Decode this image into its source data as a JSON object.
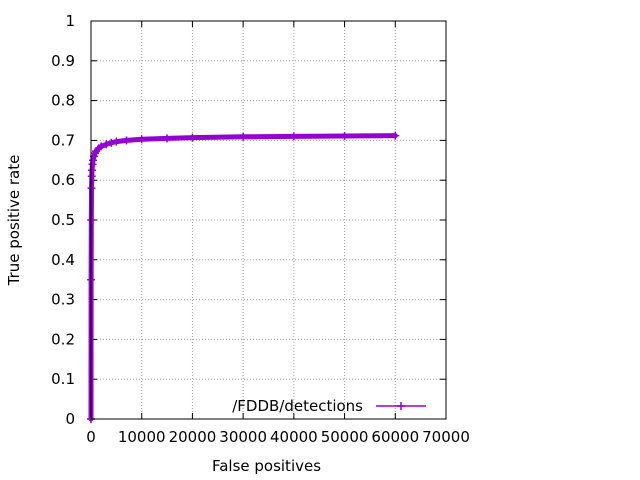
{
  "chart_data": {
    "type": "line",
    "xlabel": "False positives",
    "ylabel": "True positive rate",
    "xlim": [
      0,
      70000
    ],
    "ylim": [
      0,
      1
    ],
    "x_ticks": [
      0,
      10000,
      20000,
      30000,
      40000,
      50000,
      60000,
      70000
    ],
    "x_tick_labels": [
      "0",
      "10000",
      "20000",
      "30000",
      "40000",
      "50000",
      "60000",
      "70000"
    ],
    "y_ticks": [
      0,
      0.1,
      0.2,
      0.3,
      0.4,
      0.5,
      0.6,
      0.7,
      0.8,
      0.9,
      1
    ],
    "y_tick_labels": [
      "0",
      "0.1",
      "0.2",
      "0.3",
      "0.4",
      "0.5",
      "0.6",
      "0.7",
      "0.8",
      "0.9",
      "1"
    ],
    "grid": true,
    "legend_position": "bottom-right",
    "series": [
      {
        "name": "/FDDB/detections",
        "color": "#9400d3",
        "marker": "plus",
        "x": [
          0,
          20,
          50,
          100,
          150,
          200,
          300,
          400,
          600,
          800,
          1000,
          1500,
          2000,
          3000,
          4000,
          5000,
          7000,
          10000,
          15000,
          20000,
          30000,
          40000,
          50000,
          60000
        ],
        "y": [
          0.0,
          0.35,
          0.5,
          0.58,
          0.61,
          0.625,
          0.64,
          0.65,
          0.66,
          0.668,
          0.673,
          0.68,
          0.685,
          0.69,
          0.694,
          0.697,
          0.7,
          0.703,
          0.705,
          0.707,
          0.709,
          0.71,
          0.711,
          0.712
        ]
      }
    ]
  }
}
